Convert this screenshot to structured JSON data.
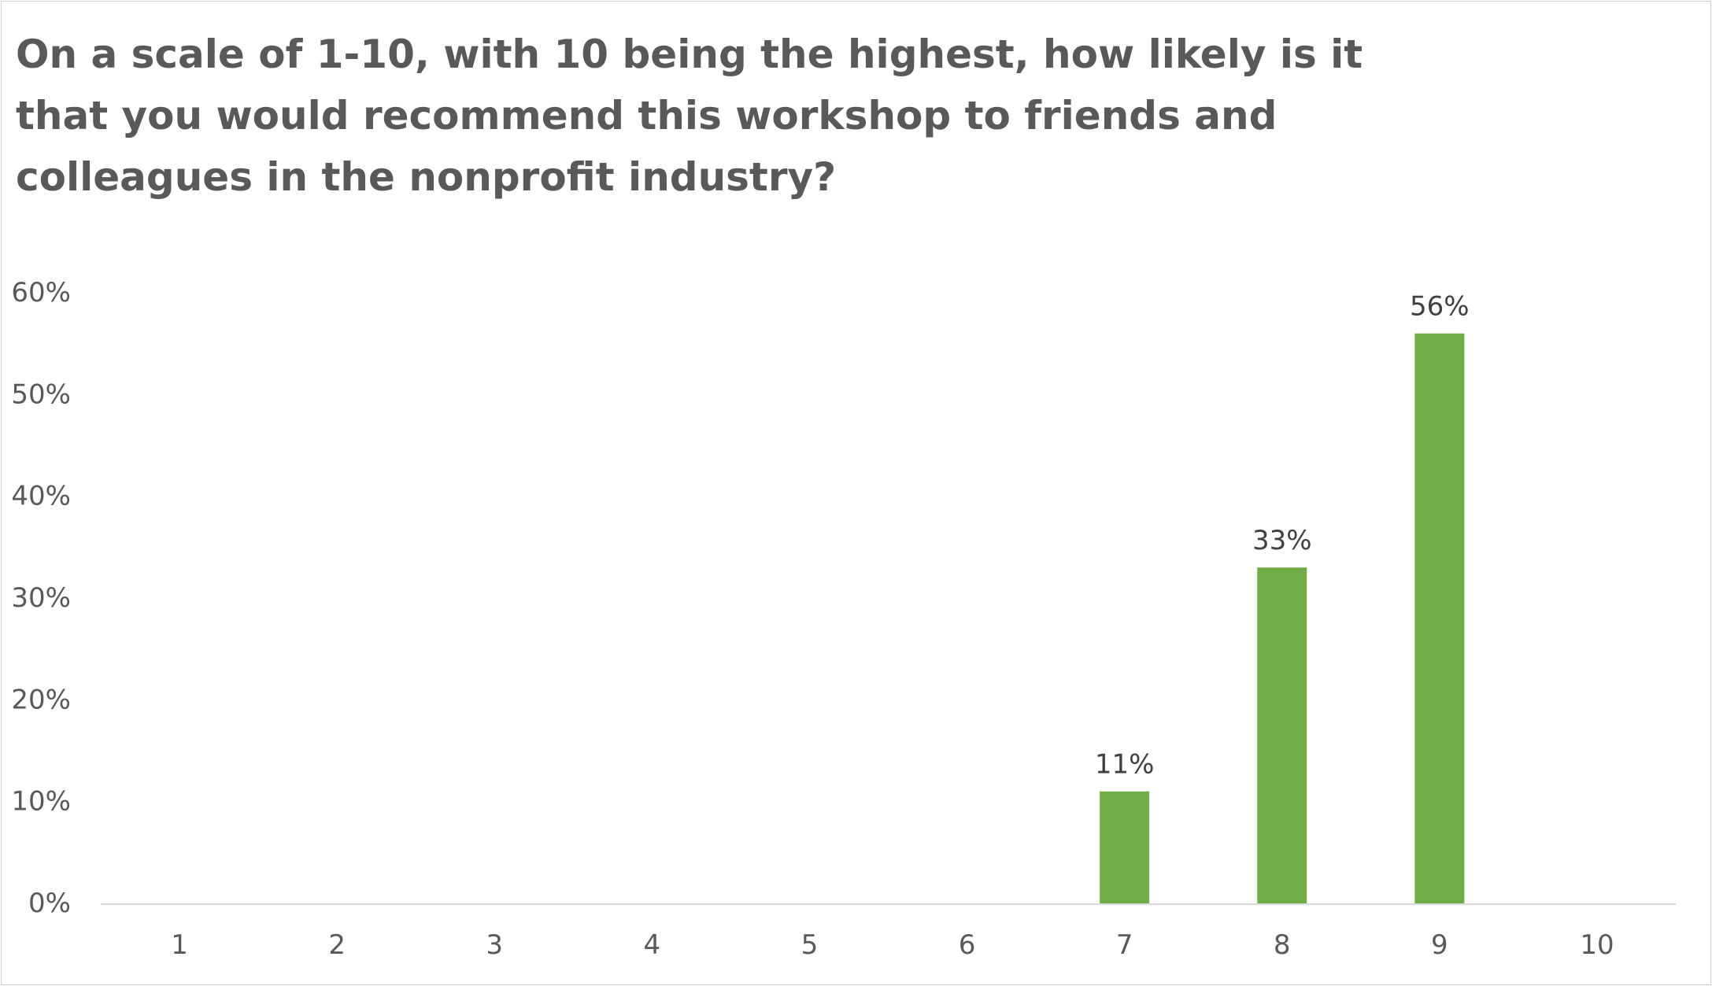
{
  "chart_data": {
    "type": "bar",
    "title": "On a scale of 1-10, with 10 being the highest, how likely is it that you would recommend this workshop to friends and colleagues in the nonprofit industry?",
    "categories": [
      "1",
      "2",
      "3",
      "4",
      "5",
      "6",
      "7",
      "8",
      "9",
      "10"
    ],
    "values": [
      0,
      0,
      0,
      0,
      0,
      0,
      11,
      33,
      56,
      0
    ],
    "data_labels": [
      "",
      "",
      "",
      "",
      "",
      "",
      "11%",
      "33%",
      "56%",
      ""
    ],
    "value_unit": "%",
    "ylim": [
      0,
      60
    ],
    "yticks": [
      0,
      10,
      20,
      30,
      40,
      50,
      60
    ],
    "ytick_labels": [
      "0%",
      "10%",
      "20%",
      "30%",
      "40%",
      "50%",
      "60%"
    ],
    "xlabel": "",
    "ylabel": "",
    "grid": false,
    "legend": "none",
    "bar_color": "#70AD47",
    "axis_color": "#D9D9D9"
  }
}
